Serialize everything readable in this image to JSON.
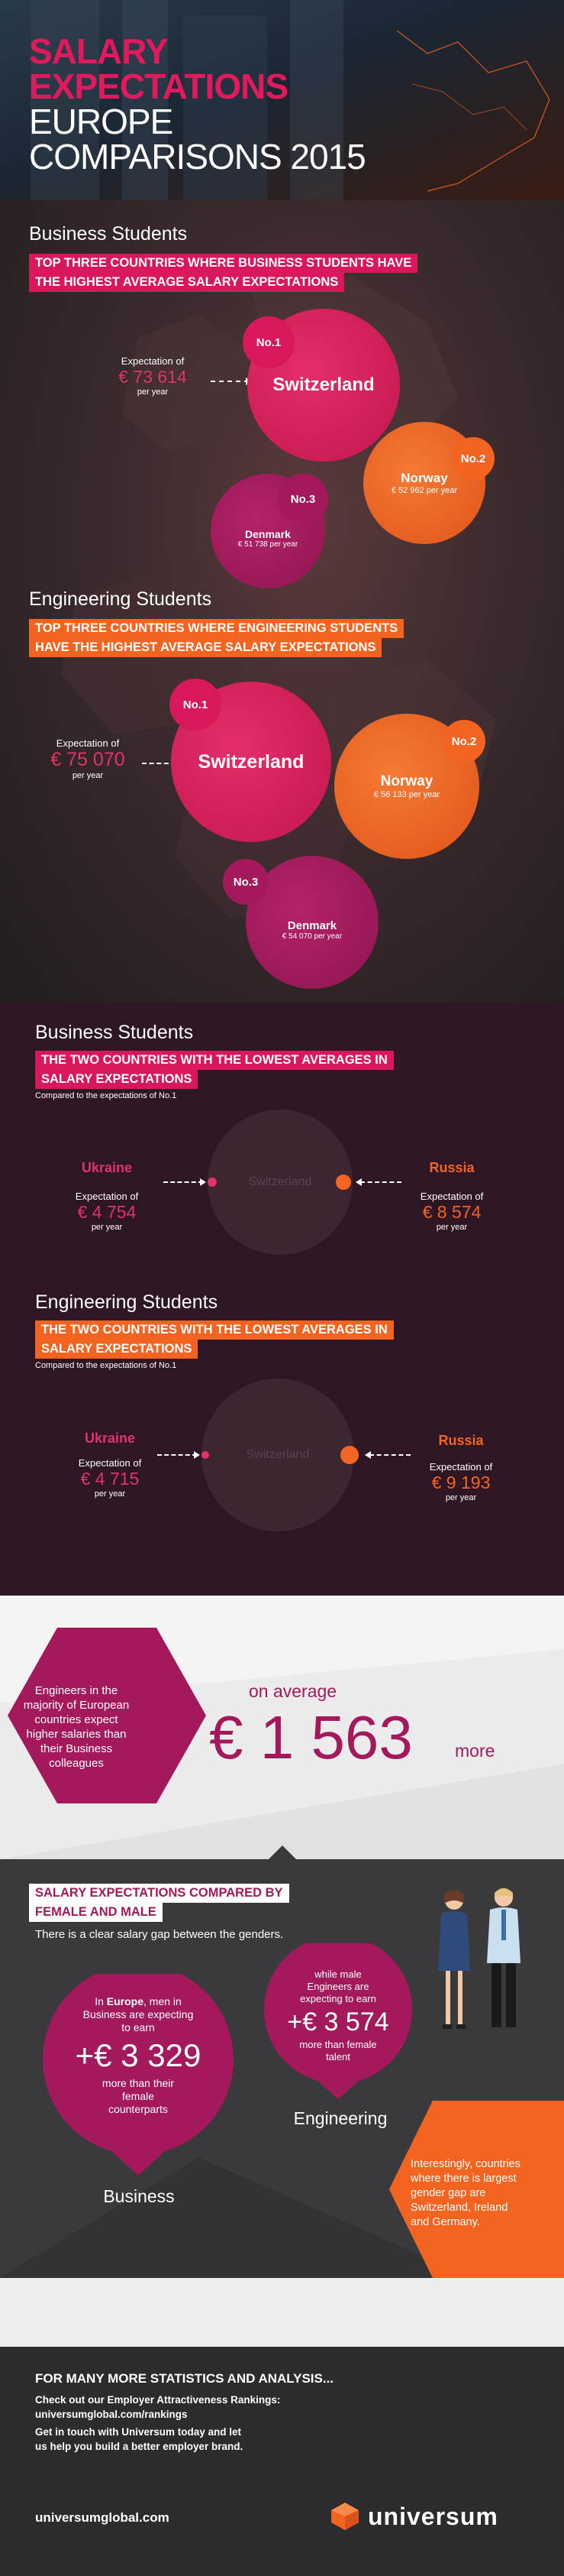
{
  "header": {
    "title_line1": "SALARY",
    "title_line2": "EXPECTATIONS",
    "title_line3": "EUROPE",
    "title_line4": "COMPARISONS 2015"
  },
  "top_business": {
    "section_label": "Business Students",
    "highlight_line1": "TOP THREE COUNTRIES WHERE BUSINESS STUDENTS HAVE",
    "highlight_line2": "THE HIGHEST AVERAGE SALARY EXPECTATIONS",
    "first": {
      "rank": "No.1",
      "country": "Switzerland",
      "expectation_label": "Expectation of",
      "amount": "€ 73 614",
      "per_year": "per year"
    },
    "second": {
      "rank": "No.2",
      "country": "Norway",
      "amount": "€ 52 962 per year"
    },
    "third": {
      "rank": "No.3",
      "country": "Denmark",
      "amount": "€ 51 738 per year"
    }
  },
  "top_engineering": {
    "section_label": "Engineering Students",
    "highlight_line1": "TOP THREE COUNTRIES WHERE ENGINEERING STUDENTS",
    "highlight_line2": "HAVE THE HIGHEST AVERAGE SALARY EXPECTATIONS",
    "first": {
      "rank": "No.1",
      "country": "Switzerland",
      "expectation_label": "Expectation of",
      "amount": "€ 75 070",
      "per_year": "per year"
    },
    "second": {
      "rank": "No.2",
      "country": "Norway",
      "amount": "€ 56 133 per year"
    },
    "third": {
      "rank": "No.3",
      "country": "Denmark",
      "amount": "€ 54 070 per year"
    }
  },
  "low_business": {
    "section_label": "Business Students",
    "highlight_line1": "THE TWO COUNTRIES WITH THE LOWEST AVERAGES IN",
    "highlight_line2": "SALARY EXPECTATIONS",
    "compared": "Compared to the expectations of No.1",
    "center": "Switzerland",
    "left": {
      "country": "Ukraine",
      "expectation_label": "Expectation of",
      "amount": "€ 4 754",
      "per_year": "per year"
    },
    "right": {
      "country": "Russia",
      "expectation_label": "Expectation of",
      "amount": "€ 8 574",
      "per_year": "per year"
    }
  },
  "low_engineering": {
    "section_label": "Engineering Students",
    "highlight_line1": "THE TWO COUNTRIES WITH THE LOWEST AVERAGES IN",
    "highlight_line2": "SALARY EXPECTATIONS",
    "compared": "Compared to the expectations of No.1",
    "center": "Switzerland",
    "left": {
      "country": "Ukraine",
      "expectation_label": "Expectation of",
      "amount": "€ 4 715",
      "per_year": "per year"
    },
    "right": {
      "country": "Russia",
      "expectation_label": "Expectation of",
      "amount": "€ 9 193",
      "per_year": "per year"
    }
  },
  "average": {
    "hex_line1": "Engineers in the",
    "hex_line2": "majority of European",
    "hex_line3": "countries expect",
    "hex_line4": "higher salaries than",
    "hex_line5": "their Business",
    "hex_line6": "colleagues",
    "on_average": "on average",
    "amount": "€ 1 563",
    "more": "more"
  },
  "gender": {
    "highlight_line1": "SALARY EXPECTATIONS COMPARED BY",
    "highlight_line2": "FEMALE AND MALE",
    "subtitle": "There is a clear salary gap between the genders.",
    "business": {
      "line1_pre": "In ",
      "line1_bold": "Europe",
      "line1_post": ", men in",
      "line2": "Business are expecting",
      "line3": "to earn",
      "amount": "+€ 3 329",
      "line4": "more than their",
      "line5": "female",
      "line6": "counterparts",
      "label": "Business"
    },
    "engineering": {
      "line1": "while male",
      "line2": "Engineers are",
      "line3": "expecting to earn",
      "amount": "+€ 3 574",
      "line4": "more than female",
      "line5": "talent",
      "label": "Engineering"
    },
    "hex_note": {
      "line1": "Interestingly, countries",
      "line2": "where there is largest",
      "line3": "gender gap are",
      "line4": "Switzerland, Ireland",
      "line5": "and Germany."
    }
  },
  "footer": {
    "headline": "FOR MANY MORE STATISTICS AND ANALYSIS...",
    "line1": "Check out our Employer Attractiveness Rankings:",
    "line2": "universumglobal.com/rankings",
    "line3": "Get in touch with Universum today and let",
    "line4": "us help you build a better employer brand.",
    "url": "universumglobal.com",
    "brand": "universum"
  },
  "colors": {
    "pink": "#d8185b",
    "magenta": "#a3195b",
    "orange": "#f2641f",
    "dark_bg": "#2b1622",
    "grey_bg": "#3a3a3d"
  }
}
